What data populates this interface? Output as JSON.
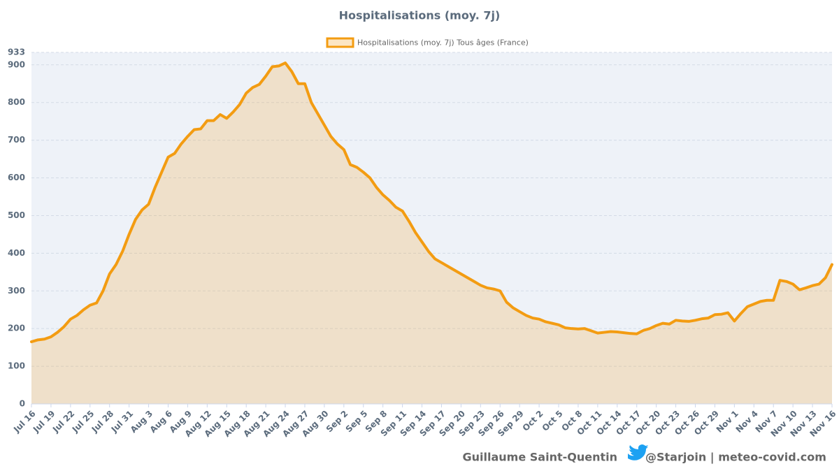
{
  "chart_data": {
    "type": "area",
    "title": "Hospitalisations (moy. 7j)",
    "categories": [
      "Jul 16",
      null,
      null,
      "Jul 19",
      null,
      null,
      "Jul 22",
      null,
      null,
      "Jul 25",
      null,
      null,
      "Jul 28",
      null,
      null,
      "Jul 31",
      null,
      null,
      "Aug 3",
      null,
      null,
      "Aug 6",
      null,
      null,
      "Aug 9",
      null,
      null,
      "Aug 12",
      null,
      null,
      "Aug 15",
      null,
      null,
      "Aug 18",
      null,
      null,
      "Aug 21",
      null,
      null,
      "Aug 24",
      null,
      null,
      "Aug 27",
      null,
      null,
      "Aug 30",
      null,
      null,
      "Sep 2",
      null,
      null,
      "Sep 5",
      null,
      null,
      "Sep 8",
      null,
      null,
      "Sep 11",
      null,
      null,
      "Sep 14",
      null,
      null,
      "Sep 17",
      null,
      null,
      "Sep 20",
      null,
      null,
      "Sep 23",
      null,
      null,
      "Sep 26",
      null,
      null,
      "Sep 29",
      null,
      null,
      "Oct 2",
      null,
      null,
      "Oct 5",
      null,
      null,
      "Oct 8",
      null,
      null,
      "Oct 11",
      null,
      null,
      "Oct 14",
      null,
      null,
      "Oct 17",
      null,
      null,
      "Oct 20",
      null,
      null,
      "Oct 23",
      null,
      null,
      "Oct 26",
      null,
      null,
      "Oct 29",
      null,
      null,
      "Nov 1",
      null,
      null,
      "Nov 4",
      null,
      null,
      "Nov 7",
      null,
      null,
      "Nov 10",
      null,
      null,
      "Nov 13",
      null,
      null,
      "Nov 16"
    ],
    "series": [
      {
        "name": "Hospitalisations (moy. 7j) Tous âges (France)",
        "color": "#f39c12",
        "values": [
          165,
          170,
          172,
          178,
          190,
          205,
          225,
          235,
          250,
          262,
          268,
          300,
          345,
          370,
          405,
          450,
          490,
          515,
          530,
          575,
          615,
          655,
          665,
          690,
          710,
          728,
          730,
          752,
          752,
          768,
          758,
          775,
          795,
          825,
          840,
          848,
          870,
          895,
          897,
          905,
          882,
          850,
          850,
          800,
          770,
          740,
          710,
          690,
          675,
          635,
          628,
          615,
          600,
          575,
          555,
          540,
          522,
          512,
          485,
          455,
          430,
          405,
          385,
          375,
          365,
          355,
          345,
          335,
          325,
          315,
          308,
          305,
          300,
          270,
          255,
          245,
          235,
          228,
          225,
          218,
          214,
          210,
          202,
          200,
          199,
          200,
          194,
          188,
          190,
          192,
          191,
          189,
          187,
          186,
          195,
          200,
          208,
          214,
          212,
          222,
          220,
          219,
          222,
          226,
          228,
          237,
          238,
          242,
          220,
          240,
          258,
          265,
          272,
          275,
          275,
          328,
          325,
          318,
          303,
          308,
          314,
          318,
          335,
          370
        ]
      }
    ],
    "ylim": [
      0,
      933
    ],
    "yticks": [
      0,
      100,
      200,
      300,
      400,
      500,
      600,
      700,
      800,
      900,
      933
    ],
    "grid": true,
    "legend": "top"
  },
  "footer": {
    "author": "Guillaume Saint-Quentin",
    "source": "@Starjoin | meteo-covid.com"
  }
}
